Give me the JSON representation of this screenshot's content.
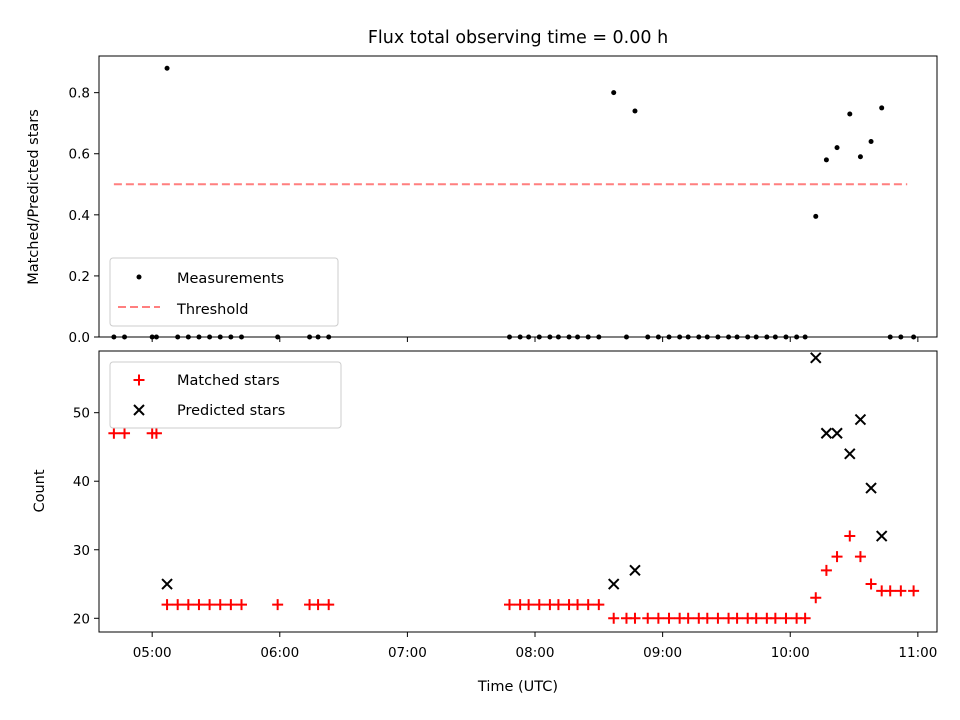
{
  "title": "Flux total observing time = 0.00 h",
  "chart_data": [
    {
      "type": "scatter",
      "ylabel": "Matched/Predicted stars",
      "xlabel": "",
      "xlim": [
        "04:35",
        "11:09"
      ],
      "ylim": [
        0,
        0.92
      ],
      "yticks": [
        "0.0",
        "0.2",
        "0.4",
        "0.6",
        "0.8"
      ],
      "grid": false,
      "legend_position": "lower-left",
      "threshold": {
        "name": "Threshold",
        "value": 0.5,
        "x_range": [
          "04:42",
          "10:55"
        ],
        "color": "#ff7f7f",
        "style": "dashed"
      },
      "series": [
        {
          "name": "Measurements",
          "marker": "dot",
          "color": "#000000",
          "points": [
            [
              "04:42",
              0
            ],
            [
              "04:47",
              0
            ],
            [
              "05:00",
              0
            ],
            [
              "05:02",
              0
            ],
            [
              "05:07",
              0.88
            ],
            [
              "05:12",
              0
            ],
            [
              "05:17",
              0
            ],
            [
              "05:22",
              0
            ],
            [
              "05:27",
              0
            ],
            [
              "05:32",
              0
            ],
            [
              "05:37",
              0
            ],
            [
              "05:42",
              0
            ],
            [
              "05:59",
              0
            ],
            [
              "06:14",
              0
            ],
            [
              "06:18",
              0
            ],
            [
              "06:23",
              0
            ],
            [
              "07:48",
              0
            ],
            [
              "07:53",
              0
            ],
            [
              "07:57",
              0
            ],
            [
              "08:02",
              0
            ],
            [
              "08:07",
              0
            ],
            [
              "08:11",
              0
            ],
            [
              "08:16",
              0
            ],
            [
              "08:20",
              0
            ],
            [
              "08:25",
              0
            ],
            [
              "08:30",
              0
            ],
            [
              "08:37",
              0.8
            ],
            [
              "08:43",
              0
            ],
            [
              "08:47",
              0.74
            ],
            [
              "08:53",
              0
            ],
            [
              "08:58",
              0
            ],
            [
              "09:03",
              0
            ],
            [
              "09:08",
              0
            ],
            [
              "09:12",
              0
            ],
            [
              "09:17",
              0
            ],
            [
              "09:21",
              0
            ],
            [
              "09:26",
              0
            ],
            [
              "09:31",
              0
            ],
            [
              "09:35",
              0
            ],
            [
              "09:40",
              0
            ],
            [
              "09:44",
              0
            ],
            [
              "09:49",
              0
            ],
            [
              "09:53",
              0
            ],
            [
              "09:58",
              0
            ],
            [
              "10:03",
              0
            ],
            [
              "10:07",
              0
            ],
            [
              "10:12",
              0.395
            ],
            [
              "10:17",
              0.58
            ],
            [
              "10:22",
              0.62
            ],
            [
              "10:28",
              0.73
            ],
            [
              "10:33",
              0.59
            ],
            [
              "10:38",
              0.64
            ],
            [
              "10:43",
              0.75
            ],
            [
              "10:47",
              0
            ],
            [
              "10:52",
              0
            ],
            [
              "10:58",
              0
            ]
          ]
        }
      ]
    },
    {
      "type": "scatter",
      "ylabel": "Count",
      "xlabel": "Time (UTC)",
      "xlim": [
        "04:35",
        "11:09"
      ],
      "ylim": [
        18,
        59
      ],
      "yticks": [
        "20",
        "30",
        "40",
        "50"
      ],
      "xticks": [
        "05:00",
        "06:00",
        "07:00",
        "08:00",
        "09:00",
        "10:00",
        "11:00"
      ],
      "grid": false,
      "legend_position": "upper-left",
      "series": [
        {
          "name": "Matched stars",
          "marker": "plus",
          "color": "#ff0000",
          "points": [
            [
              "04:42",
              47
            ],
            [
              "04:47",
              47
            ],
            [
              "05:00",
              47
            ],
            [
              "05:02",
              47
            ],
            [
              "05:07",
              22
            ],
            [
              "05:12",
              22
            ],
            [
              "05:17",
              22
            ],
            [
              "05:22",
              22
            ],
            [
              "05:27",
              22
            ],
            [
              "05:32",
              22
            ],
            [
              "05:37",
              22
            ],
            [
              "05:42",
              22
            ],
            [
              "05:59",
              22
            ],
            [
              "06:14",
              22
            ],
            [
              "06:18",
              22
            ],
            [
              "06:23",
              22
            ],
            [
              "07:48",
              22
            ],
            [
              "07:53",
              22
            ],
            [
              "07:57",
              22
            ],
            [
              "08:02",
              22
            ],
            [
              "08:07",
              22
            ],
            [
              "08:11",
              22
            ],
            [
              "08:16",
              22
            ],
            [
              "08:20",
              22
            ],
            [
              "08:25",
              22
            ],
            [
              "08:30",
              22
            ],
            [
              "08:37",
              20
            ],
            [
              "08:43",
              20
            ],
            [
              "08:47",
              20
            ],
            [
              "08:53",
              20
            ],
            [
              "08:58",
              20
            ],
            [
              "09:03",
              20
            ],
            [
              "09:08",
              20
            ],
            [
              "09:12",
              20
            ],
            [
              "09:17",
              20
            ],
            [
              "09:21",
              20
            ],
            [
              "09:26",
              20
            ],
            [
              "09:31",
              20
            ],
            [
              "09:35",
              20
            ],
            [
              "09:40",
              20
            ],
            [
              "09:44",
              20
            ],
            [
              "09:49",
              20
            ],
            [
              "09:53",
              20
            ],
            [
              "09:58",
              20
            ],
            [
              "10:03",
              20
            ],
            [
              "10:07",
              20
            ],
            [
              "10:12",
              23
            ],
            [
              "10:17",
              27
            ],
            [
              "10:22",
              29
            ],
            [
              "10:28",
              32
            ],
            [
              "10:33",
              29
            ],
            [
              "10:38",
              25
            ],
            [
              "10:43",
              24
            ],
            [
              "10:47",
              24
            ],
            [
              "10:52",
              24
            ],
            [
              "10:58",
              24
            ]
          ]
        },
        {
          "name": "Predicted stars",
          "marker": "x",
          "color": "#000000",
          "points": [
            [
              "05:07",
              25
            ],
            [
              "08:37",
              25
            ],
            [
              "08:47",
              27
            ],
            [
              "10:12",
              58
            ],
            [
              "10:17",
              47
            ],
            [
              "10:22",
              47
            ],
            [
              "10:28",
              44
            ],
            [
              "10:33",
              49
            ],
            [
              "10:38",
              39
            ],
            [
              "10:43",
              32
            ]
          ]
        }
      ]
    }
  ]
}
